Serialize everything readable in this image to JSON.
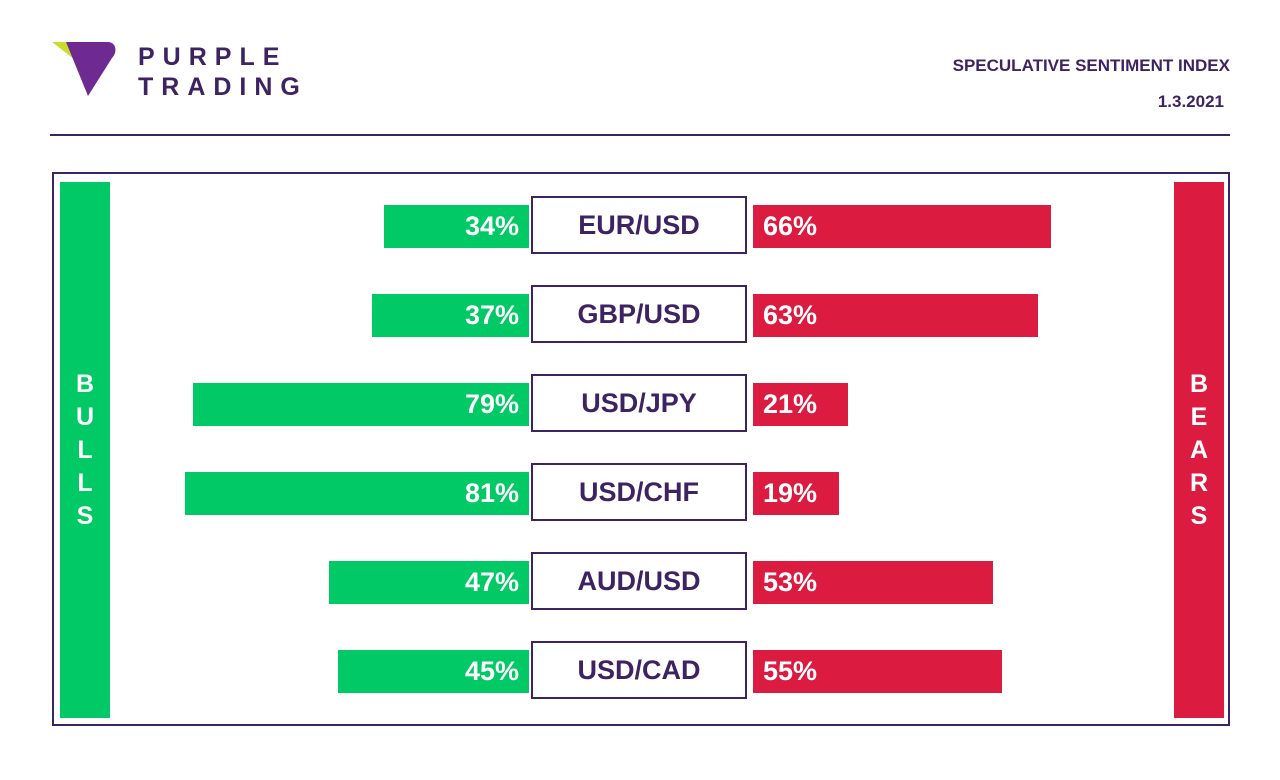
{
  "brand": {
    "line1": "PURPLE",
    "line2": "TRADING",
    "logo_icon": "purple-trading-logo-icon",
    "colors": {
      "purple": "#6e2a90",
      "lime": "#c7df2b"
    }
  },
  "header": {
    "title": "SPECULATIVE SENTIMENT INDEX",
    "date": "1.3.2021"
  },
  "labels": {
    "bulls": "BULLS",
    "bears": "BEARS"
  },
  "colors": {
    "bulls": "#00c965",
    "bears": "#db1b40",
    "text": "#3e2363"
  },
  "chart_data": {
    "type": "bar",
    "categories": [
      "EUR/USD",
      "GBP/USD",
      "USD/JPY",
      "USD/CHF",
      "AUD/USD",
      "USD/CAD"
    ],
    "series": [
      {
        "name": "BULLS",
        "values": [
          34,
          37,
          79,
          81,
          47,
          45
        ],
        "labels": [
          "34%",
          "37%",
          "79%",
          "81%",
          "47%",
          "45%"
        ]
      },
      {
        "name": "BEARS",
        "values": [
          66,
          63,
          21,
          19,
          53,
          55
        ],
        "labels": [
          "66%",
          "63%",
          "21%",
          "19%",
          "53%",
          "55%"
        ]
      }
    ],
    "unit": "%"
  }
}
